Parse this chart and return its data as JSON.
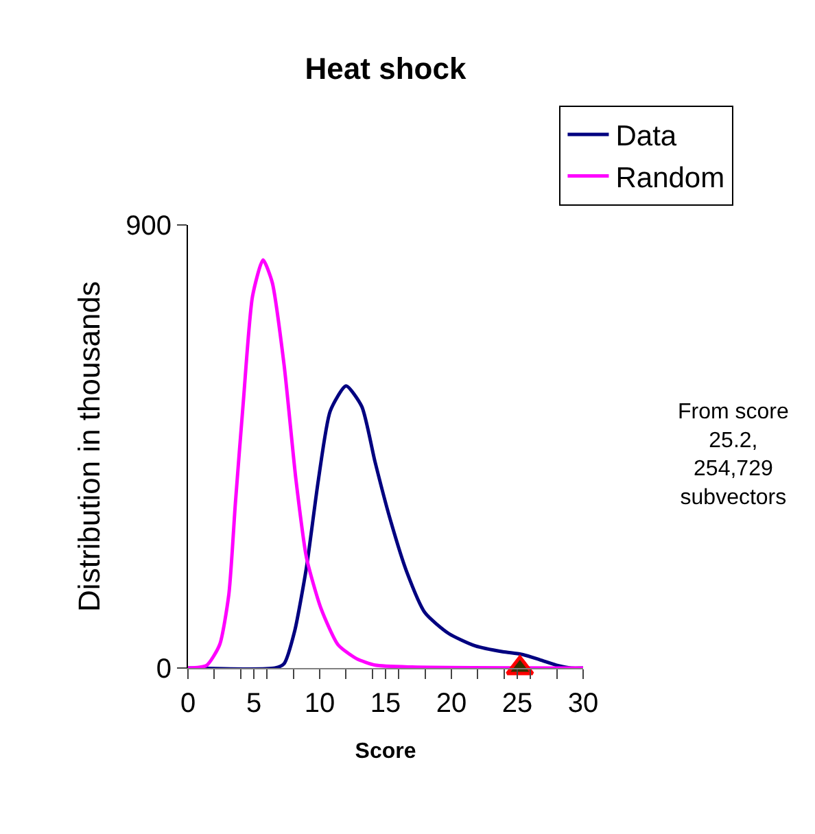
{
  "chart_data": {
    "type": "line",
    "title": "Heat shock",
    "xlabel": "Score",
    "ylabel": "Distribution in thousands",
    "xlim": [
      0,
      30
    ],
    "ylim": [
      0,
      900
    ],
    "xticks": [
      0,
      {
        "value": 2,
        "label": null
      },
      {
        "value": 4,
        "label": null
      },
      5,
      {
        "value": 6,
        "label": null
      },
      {
        "value": 8,
        "label": null
      },
      10,
      {
        "value": 12,
        "label": null
      },
      {
        "value": 14,
        "label": null
      },
      15,
      {
        "value": 16,
        "label": null
      },
      {
        "value": 18,
        "label": null
      },
      20,
      {
        "value": 22,
        "label": null
      },
      {
        "value": 24,
        "label": null
      },
      25,
      {
        "value": 26,
        "label": null
      },
      {
        "value": 28,
        "label": null
      },
      30
    ],
    "yticks": [
      0,
      900
    ],
    "grid": false,
    "legend": "top right",
    "marker": "none",
    "line_style": "solid",
    "annotations": [
      "From score\n25.2,\n254,729\nsubvectors"
    ],
    "series": [
      {
        "name": "Data",
        "color": "#000080",
        "x": [
          0,
          6.6,
          7.3,
          8.1,
          9,
          9.9,
          10.8,
          12,
          13.2,
          14.2,
          15.3,
          16.6,
          18,
          19.8,
          21.8,
          23.9,
          25.3,
          26.7,
          28.1,
          29.1,
          30
        ],
        "values": [
          0,
          0,
          9,
          75,
          205,
          382,
          522,
          573,
          531,
          419,
          307,
          196,
          112,
          70,
          45,
          33,
          28,
          17,
          5,
          0,
          0
        ]
      },
      {
        "name": "Random",
        "color": "#ff00ff",
        "x": [
          0,
          1.4,
          2.4,
          3.1,
          3.6,
          4.2,
          4.9,
          5.7,
          6.4,
          7.3,
          8.2,
          9,
          10.1,
          11.4,
          12.8,
          14.2,
          17,
          30
        ],
        "values": [
          0,
          5,
          47,
          149,
          335,
          540,
          755,
          829,
          783,
          615,
          382,
          224,
          121,
          47,
          19,
          6,
          2,
          0
        ]
      },
      {
        "type": "scatter",
        "x": [
          25.2
        ],
        "values": [
          0
        ],
        "color": "#333300",
        "marker": "triangle"
      }
    ]
  }
}
